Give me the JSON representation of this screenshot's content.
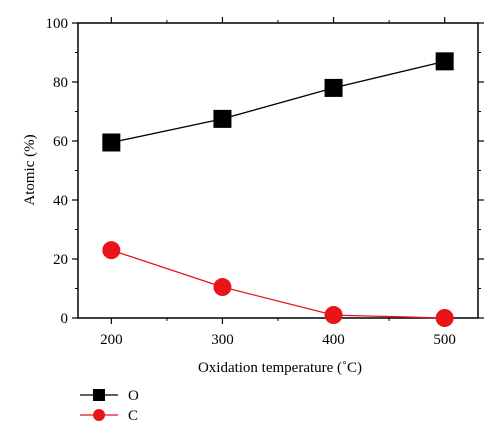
{
  "chart_data": {
    "type": "line",
    "x": [
      200,
      300,
      400,
      500
    ],
    "xlabel": "Oxidation temperature (˚C)",
    "ylabel": "Atomic (%)",
    "xlim": [
      170,
      530
    ],
    "ylim": [
      0,
      100
    ],
    "xticks": [
      200,
      300,
      400,
      500
    ],
    "yticks": [
      0,
      20,
      40,
      60,
      80,
      100
    ],
    "x_tick_labels": [
      "200",
      "300",
      "400",
      "500"
    ],
    "y_tick_labels": [
      "0",
      "20",
      "40",
      "60",
      "80",
      "100"
    ],
    "grid": false,
    "legend_position": "bottom-left, below axes",
    "series": [
      {
        "name": "O",
        "values": [
          59.5,
          67.5,
          78,
          87
        ],
        "color": "#000000",
        "marker": "square"
      },
      {
        "name": "C",
        "values": [
          23,
          10.5,
          1,
          0
        ],
        "color": "#e8141a",
        "marker": "circle"
      }
    ]
  }
}
